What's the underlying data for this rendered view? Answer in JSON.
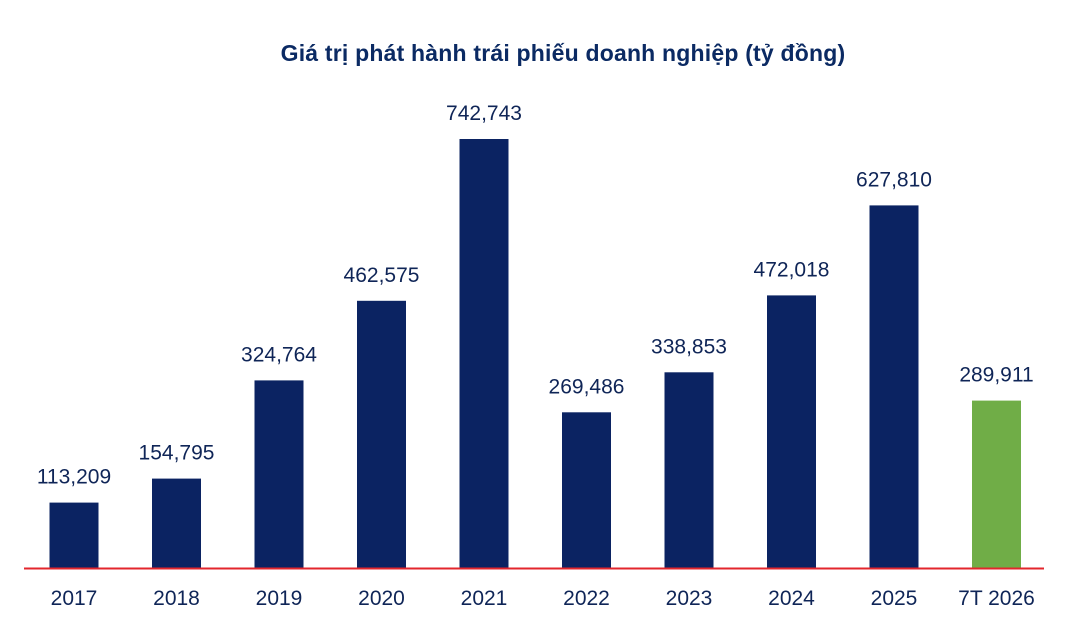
{
  "chart_data": {
    "type": "bar",
    "title": "Giá trị phát hành trái phiếu doanh nghiệp (tỷ đồng)",
    "xlabel": "",
    "ylabel": "",
    "categories": [
      "2017",
      "2018",
      "2019",
      "2020",
      "2021",
      "2022",
      "2023",
      "2024",
      "2025",
      "7T 2026"
    ],
    "values": [
      113209,
      154795,
      324764,
      462575,
      742743,
      269486,
      338853,
      472018,
      627810,
      289911
    ],
    "value_labels": [
      "113,209",
      "154,795",
      "324,764",
      "462,575",
      "742,743",
      "269,486",
      "338,853",
      "472,018",
      "627,810",
      "289,911"
    ],
    "ylim": [
      0,
      742743
    ],
    "grid": false,
    "legend": "none",
    "colors": {
      "bar": "#0b2362",
      "highlight_bar": "#70ad47",
      "baseline": "#e3262c",
      "text": "#0f2557",
      "title": "#0b2a63"
    },
    "highlight_index": 9
  }
}
